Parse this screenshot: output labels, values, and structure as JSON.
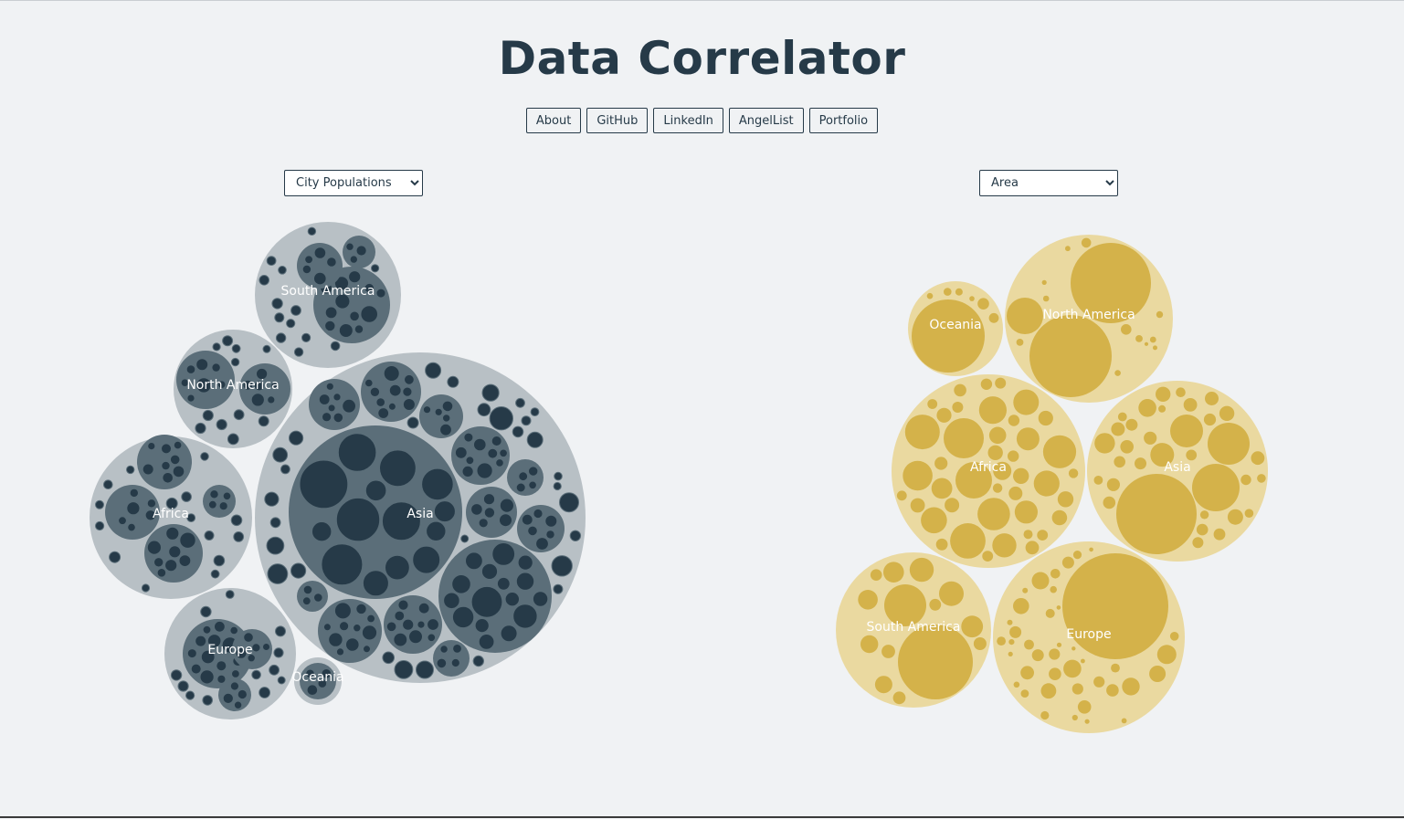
{
  "page": {
    "title": "Data Correlator",
    "nav": [
      "About",
      "GitHub",
      "LinkedIn",
      "AngelList",
      "Portfolio"
    ]
  },
  "left_chart": {
    "selected": "City Populations",
    "color_scheme": {
      "outer": "#b8c0c5",
      "mid": "#5b6e79",
      "inner": "#263a48",
      "label": "#ffffff"
    },
    "groups": [
      "South America",
      "North America",
      "Africa",
      "Asia",
      "Europe",
      "Oceania"
    ]
  },
  "right_chart": {
    "selected": "Area",
    "color_scheme": {
      "outer": "#ead9a0",
      "inner": "#d4b24a",
      "label": "#ffffff"
    },
    "groups": [
      "Oceania",
      "North America",
      "Africa",
      "Asia",
      "South America",
      "Europe"
    ]
  },
  "chart_data": [
    {
      "type": "circle-packing",
      "title": "City Populations",
      "groups": [
        "South America",
        "North America",
        "Africa",
        "Asia",
        "Europe",
        "Oceania"
      ]
    },
    {
      "type": "circle-packing",
      "title": "Area",
      "groups": [
        "Oceania",
        "North America",
        "Africa",
        "Asia",
        "South America",
        "Europe"
      ]
    }
  ]
}
